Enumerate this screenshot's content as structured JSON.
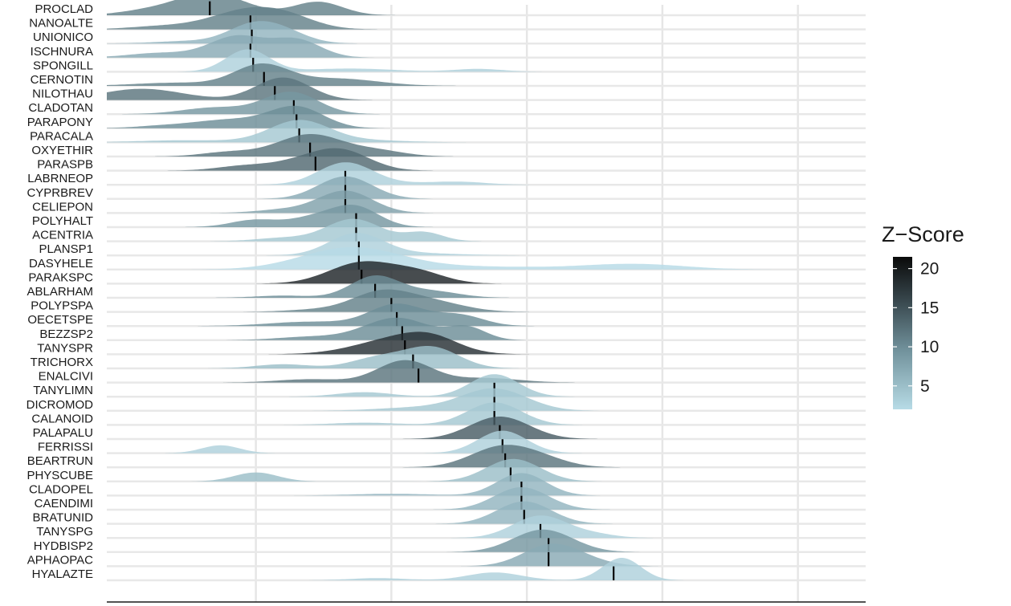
{
  "chart_data": {
    "type": "ridgeline",
    "x_range": [
      -3.5,
      24.5
    ],
    "x_gridlines": [
      2,
      7,
      12,
      17,
      22
    ],
    "legend": {
      "title": "Z−Score",
      "position": "right",
      "range": [
        2,
        21.5
      ],
      "breaks": [
        20,
        15,
        10,
        5
      ],
      "color_low": "#b7dbe6",
      "color_high": "#0a0a0a"
    },
    "series": [
      {
        "name": "PROCLAD",
        "zscore": 11,
        "median": 0.3,
        "bumps": [
          [
            0.3,
            1.3,
            1.0
          ],
          [
            -2.2,
            1.0,
            0.15
          ],
          [
            4.3,
            0.9,
            0.6
          ]
        ]
      },
      {
        "name": "NANOALTE",
        "zscore": 11,
        "median": 1.8,
        "bumps": [
          [
            1.8,
            1.4,
            1.0
          ],
          [
            -1.5,
            1.2,
            0.15
          ],
          [
            3.3,
            1.0,
            0.3
          ]
        ]
      },
      {
        "name": "UNIONICO",
        "zscore": 6,
        "median": 1.85,
        "bumps": [
          [
            1.8,
            0.9,
            1.0
          ],
          [
            3.0,
            0.9,
            0.7
          ],
          [
            -0.5,
            1.2,
            0.15
          ]
        ]
      },
      {
        "name": "ISCHNURA",
        "zscore": 7,
        "median": 1.8,
        "bumps": [
          [
            1.3,
            1.0,
            0.9
          ],
          [
            3.5,
            0.9,
            0.75
          ],
          [
            -1.5,
            1.2,
            0.2
          ]
        ]
      },
      {
        "name": "SPONGILL",
        "zscore": 3,
        "median": 1.9,
        "bumps": [
          [
            1.7,
            0.8,
            1.0
          ],
          [
            4.5,
            1.2,
            0.08
          ],
          [
            6.2,
            1.3,
            0.1
          ],
          [
            10.2,
            0.9,
            0.13
          ]
        ]
      },
      {
        "name": "CERNOTIN",
        "zscore": 11,
        "median": 2.3,
        "bumps": [
          [
            2.2,
            1.0,
            1.0
          ],
          [
            5.0,
            1.5,
            0.35
          ],
          [
            -1.0,
            1.5,
            0.15
          ]
        ]
      },
      {
        "name": "NILOTHAU",
        "zscore": 12,
        "median": 2.7,
        "bumps": [
          [
            3.0,
            1.0,
            1.0
          ],
          [
            -2.2,
            1.5,
            0.5
          ]
        ]
      },
      {
        "name": "CLADOTAN",
        "zscore": 9,
        "median": 3.4,
        "bumps": [
          [
            3.3,
            1.0,
            1.0
          ],
          [
            0.5,
            1.2,
            0.3
          ]
        ]
      },
      {
        "name": "PARAPONY",
        "zscore": 10,
        "median": 3.5,
        "bumps": [
          [
            3.5,
            1.0,
            1.0
          ],
          [
            1.0,
            1.3,
            0.4
          ],
          [
            -1.5,
            1.0,
            0.1
          ]
        ]
      },
      {
        "name": "PARACALA",
        "zscore": 4,
        "median": 3.6,
        "bumps": [
          [
            3.6,
            1.1,
            1.0
          ],
          [
            -0.5,
            1.8,
            0.1
          ],
          [
            6.0,
            1.5,
            0.1
          ]
        ]
      },
      {
        "name": "OXYETHIR",
        "zscore": 12,
        "median": 4.0,
        "bumps": [
          [
            4.0,
            1.2,
            1.0
          ],
          [
            6.5,
            1.0,
            0.25
          ],
          [
            1.0,
            1.0,
            0.2
          ]
        ]
      },
      {
        "name": "PARASPB",
        "zscore": 13,
        "median": 4.2,
        "bumps": [
          [
            4.2,
            1.3,
            0.9
          ],
          [
            5.3,
            1.0,
            0.9
          ],
          [
            1.5,
            1.0,
            0.3
          ]
        ]
      },
      {
        "name": "LABRNEOP",
        "zscore": 3,
        "median": 5.3,
        "bumps": [
          [
            5.3,
            1.0,
            1.0
          ],
          [
            9.5,
            1.0,
            0.12
          ],
          [
            7.5,
            1.5,
            0.06
          ]
        ]
      },
      {
        "name": "CYPRBREV",
        "zscore": 7,
        "median": 5.3,
        "bumps": [
          [
            5.3,
            1.0,
            1.0
          ]
        ]
      },
      {
        "name": "CELIEPON",
        "zscore": 8,
        "median": 5.3,
        "bumps": [
          [
            5.3,
            1.0,
            1.0
          ],
          [
            3.0,
            1.0,
            0.15
          ]
        ]
      },
      {
        "name": "POLYHALT",
        "zscore": 9,
        "median": 5.7,
        "bumps": [
          [
            5.6,
            0.9,
            1.0
          ],
          [
            2.0,
            0.9,
            0.35
          ],
          [
            4.0,
            0.8,
            0.35
          ]
        ]
      },
      {
        "name": "ACENTRIA",
        "zscore": 4,
        "median": 5.7,
        "bumps": [
          [
            5.6,
            1.0,
            1.0
          ],
          [
            8.2,
            0.7,
            0.4
          ],
          [
            3.0,
            1.0,
            0.15
          ]
        ]
      },
      {
        "name": "PLANSP1",
        "zscore": 3,
        "median": 5.8,
        "bumps": [
          [
            5.7,
            1.0,
            1.0
          ],
          [
            8.0,
            1.5,
            0.1
          ]
        ]
      },
      {
        "name": "DASYHELE",
        "zscore": 2,
        "median": 5.8,
        "bumps": [
          [
            5.5,
            1.8,
            0.6
          ],
          [
            10.0,
            3.0,
            0.08
          ],
          [
            16.0,
            1.8,
            0.15
          ]
        ]
      },
      {
        "name": "PARAKSPC",
        "zscore": 19,
        "median": 5.9,
        "bumps": [
          [
            5.9,
            1.2,
            1.0
          ],
          [
            8.0,
            1.0,
            0.5
          ]
        ]
      },
      {
        "name": "ABLARHAM",
        "zscore": 10,
        "median": 6.4,
        "bumps": [
          [
            6.4,
            0.9,
            1.0
          ],
          [
            8.5,
            1.0,
            0.3
          ],
          [
            3.0,
            1.0,
            0.1
          ]
        ]
      },
      {
        "name": "POLYPSPA",
        "zscore": 11,
        "median": 7.0,
        "bumps": [
          [
            6.6,
            1.1,
            1.0
          ],
          [
            8.5,
            1.2,
            0.5
          ],
          [
            4.0,
            1.0,
            0.1
          ]
        ]
      },
      {
        "name": "OECETSPE",
        "zscore": 10,
        "median": 7.2,
        "bumps": [
          [
            7.2,
            1.0,
            1.0
          ],
          [
            9.5,
            0.9,
            0.5
          ],
          [
            4.0,
            1.5,
            0.2
          ]
        ]
      },
      {
        "name": "BEZZSP2",
        "zscore": 10,
        "median": 7.4,
        "bumps": [
          [
            7.2,
            1.2,
            1.0
          ],
          [
            9.8,
            0.7,
            0.55
          ],
          [
            4.0,
            1.2,
            0.15
          ]
        ]
      },
      {
        "name": "TANYSPR",
        "zscore": 18,
        "median": 7.5,
        "bumps": [
          [
            7.2,
            1.5,
            1.0
          ],
          [
            8.5,
            1.0,
            0.7
          ]
        ]
      },
      {
        "name": "TRICHORX",
        "zscore": 5,
        "median": 7.8,
        "bumps": [
          [
            8.5,
            1.0,
            1.0
          ],
          [
            6.5,
            1.0,
            0.5
          ],
          [
            3.0,
            1.0,
            0.2
          ]
        ]
      },
      {
        "name": "ENALCIVI",
        "zscore": 12,
        "median": 8.0,
        "bumps": [
          [
            7.5,
            1.0,
            1.0
          ],
          [
            10.5,
            1.2,
            0.2
          ],
          [
            4.0,
            1.2,
            0.15
          ]
        ]
      },
      {
        "name": "TANYLIMN",
        "zscore": 4,
        "median": 10.8,
        "bumps": [
          [
            10.8,
            0.9,
            1.0
          ],
          [
            6.0,
            1.0,
            0.2
          ]
        ]
      },
      {
        "name": "DICROMOD",
        "zscore": 4,
        "median": 10.8,
        "bumps": [
          [
            10.8,
            1.2,
            1.0
          ],
          [
            8.0,
            1.5,
            0.15
          ]
        ]
      },
      {
        "name": "CALANOID",
        "zscore": 4,
        "median": 10.8,
        "bumps": [
          [
            10.8,
            1.0,
            1.0
          ],
          [
            6.0,
            1.2,
            0.1
          ]
        ]
      },
      {
        "name": "PALAPALU",
        "zscore": 14,
        "median": 11.0,
        "bumps": [
          [
            11.0,
            1.1,
            1.0
          ]
        ]
      },
      {
        "name": "FERRISSI",
        "zscore": 3,
        "median": 11.1,
        "bumps": [
          [
            11.1,
            0.9,
            1.0
          ],
          [
            0.7,
            0.7,
            0.35
          ]
        ]
      },
      {
        "name": "BEARTRUN",
        "zscore": 12,
        "median": 11.2,
        "bumps": [
          [
            11.0,
            1.1,
            1.0
          ],
          [
            12.5,
            1.0,
            0.4
          ]
        ]
      },
      {
        "name": "PHYSCUBE",
        "zscore": 5,
        "median": 11.4,
        "bumps": [
          [
            11.5,
            1.0,
            1.0
          ],
          [
            2.0,
            0.8,
            0.4
          ]
        ]
      },
      {
        "name": "CLADOPEL",
        "zscore": 6,
        "median": 11.8,
        "bumps": [
          [
            11.8,
            0.9,
            1.0
          ],
          [
            7.0,
            1.5,
            0.08
          ]
        ]
      },
      {
        "name": "CAENDIMI",
        "zscore": 6,
        "median": 11.8,
        "bumps": [
          [
            11.8,
            1.0,
            1.0
          ]
        ]
      },
      {
        "name": "BRATUNID",
        "zscore": 6,
        "median": 11.9,
        "bumps": [
          [
            11.9,
            1.0,
            1.0
          ]
        ]
      },
      {
        "name": "TANYSPG",
        "zscore": 3,
        "median": 12.5,
        "bumps": [
          [
            12.5,
            1.0,
            1.0
          ],
          [
            14.5,
            0.8,
            0.15
          ]
        ]
      },
      {
        "name": "HYDBISP2",
        "zscore": 9,
        "median": 12.8,
        "bumps": [
          [
            12.6,
            1.1,
            1.0
          ]
        ]
      },
      {
        "name": "APHAOPAC",
        "zscore": 7,
        "median": 12.8,
        "bumps": [
          [
            12.8,
            1.0,
            1.0
          ],
          [
            14.0,
            1.0,
            0.3
          ]
        ]
      },
      {
        "name": "HYALAZTE",
        "zscore": 3,
        "median": 15.2,
        "bumps": [
          [
            15.5,
            0.7,
            1.0
          ],
          [
            10.8,
            1.0,
            0.35
          ],
          [
            6.5,
            1.0,
            0.1
          ]
        ]
      }
    ]
  }
}
